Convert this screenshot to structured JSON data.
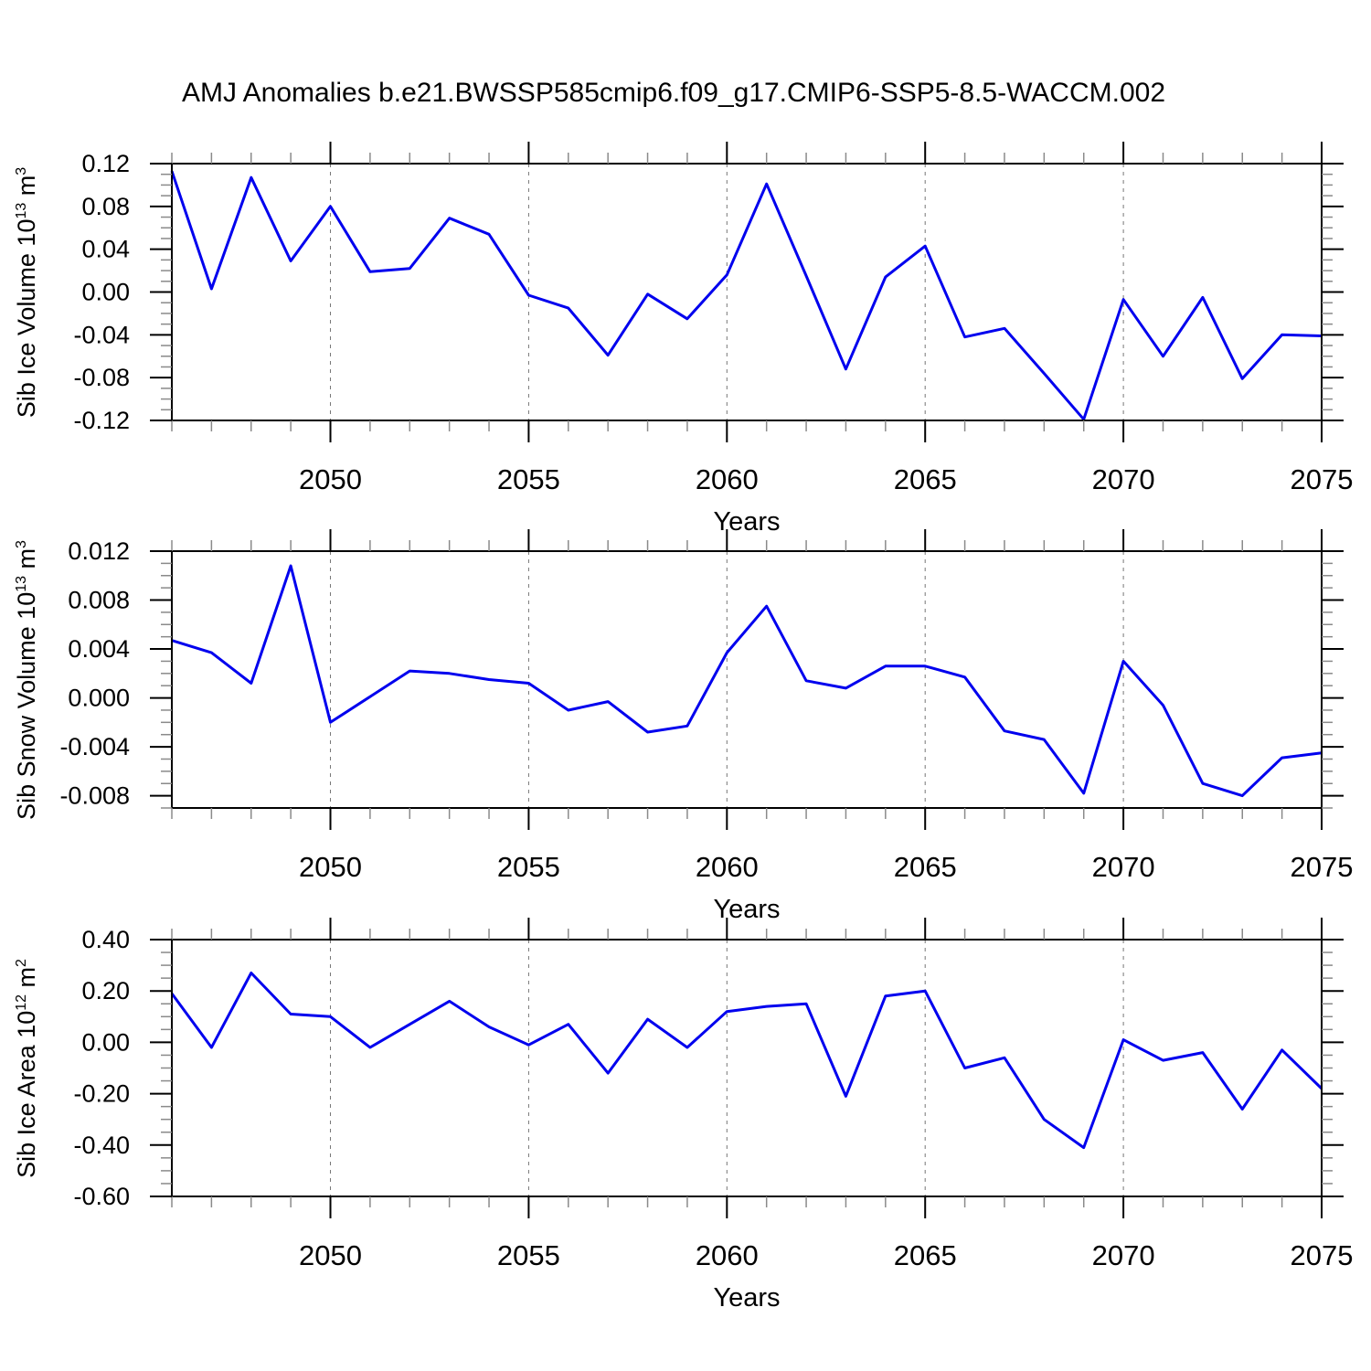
{
  "title": "AMJ Anomalies b.e21.BWSSP585cmip6.f09_g17.CMIP6-SSP5-8.5-WACCM.002",
  "colors": {
    "line": "#0000EE",
    "axis": "#000000",
    "grid": "#777777",
    "minor_tick": "#8a8a8a"
  },
  "x_axis": {
    "label": "Years",
    "years": [
      2046,
      2047,
      2048,
      2049,
      2050,
      2051,
      2052,
      2053,
      2054,
      2055,
      2056,
      2057,
      2058,
      2059,
      2060,
      2061,
      2062,
      2063,
      2064,
      2065,
      2066,
      2067,
      2068,
      2069,
      2070,
      2071,
      2072,
      2073,
      2074,
      2075
    ],
    "major_ticks": [
      2050,
      2055,
      2060,
      2065,
      2070,
      2075
    ],
    "grid_years": [
      2050,
      2055,
      2060,
      2065,
      2070
    ]
  },
  "chart_data": [
    {
      "type": "line",
      "name": "sib-ice-volume",
      "title": "Sib Ice Volume 10^13 m^3",
      "ylabel": {
        "pre": "Sib Ice Volume 10",
        "sup1": "13",
        "mid": " m",
        "sup2": "3"
      },
      "ylim": [
        -0.12,
        0.12
      ],
      "minor_step": 0.01,
      "yticks": [
        {
          "v": 0.12,
          "label": "0.12"
        },
        {
          "v": 0.08,
          "label": "0.08"
        },
        {
          "v": 0.04,
          "label": "0.04"
        },
        {
          "v": 0.0,
          "label": "0.00"
        },
        {
          "v": -0.04,
          "label": "-0.04"
        },
        {
          "v": -0.08,
          "label": "-0.08"
        },
        {
          "v": -0.12,
          "label": "-0.12"
        }
      ],
      "values": [
        0.113,
        0.003,
        0.107,
        0.029,
        0.08,
        0.019,
        0.022,
        0.069,
        0.054,
        -0.003,
        -0.015,
        -0.059,
        -0.002,
        -0.025,
        0.016,
        0.101,
        0.015,
        -0.072,
        0.014,
        0.043,
        -0.042,
        -0.034,
        -0.076,
        -0.119,
        -0.007,
        -0.06,
        -0.005,
        -0.081,
        -0.04,
        -0.041
      ]
    },
    {
      "type": "line",
      "name": "sib-snow-volume",
      "title": "Sib Snow Volume 10^13 m^3",
      "ylabel": {
        "pre": "Sib Snow Volume 10",
        "sup1": "13",
        "mid": " m",
        "sup2": "3"
      },
      "ylim": [
        -0.009,
        0.012
      ],
      "minor_step": 0.001,
      "yticks": [
        {
          "v": 0.012,
          "label": "0.012"
        },
        {
          "v": 0.008,
          "label": "0.008"
        },
        {
          "v": 0.004,
          "label": "0.004"
        },
        {
          "v": 0.0,
          "label": "0.000"
        },
        {
          "v": -0.004,
          "label": "-0.004"
        },
        {
          "v": -0.008,
          "label": "-0.008"
        }
      ],
      "values": [
        0.0047,
        0.0037,
        0.0012,
        0.0108,
        -0.002,
        0.0001,
        0.0022,
        0.002,
        0.0015,
        0.0012,
        -0.001,
        -0.0003,
        -0.0028,
        -0.0023,
        0.0037,
        0.0075,
        0.0014,
        0.0008,
        0.0026,
        0.0026,
        0.0017,
        -0.0027,
        -0.0034,
        -0.0078,
        0.003,
        -0.0006,
        -0.007,
        -0.008,
        -0.0049,
        -0.0045
      ]
    },
    {
      "type": "line",
      "name": "sib-ice-area",
      "title": "Sib Ice Area 10^12 m^2",
      "ylabel": {
        "pre": "Sib Ice Area 10",
        "sup1": "12",
        "mid": " m",
        "sup2": "2"
      },
      "ylim": [
        -0.6,
        0.4
      ],
      "minor_step": 0.05,
      "yticks": [
        {
          "v": 0.4,
          "label": "0.40"
        },
        {
          "v": 0.2,
          "label": "0.20"
        },
        {
          "v": 0.0,
          "label": "0.00"
        },
        {
          "v": -0.2,
          "label": "-0.20"
        },
        {
          "v": -0.4,
          "label": "-0.40"
        },
        {
          "v": -0.6,
          "label": "-0.60"
        }
      ],
      "values": [
        0.19,
        -0.02,
        0.27,
        0.11,
        0.1,
        -0.02,
        0.07,
        0.16,
        0.06,
        -0.01,
        0.07,
        -0.12,
        0.09,
        -0.02,
        0.12,
        0.14,
        0.15,
        -0.21,
        0.18,
        0.2,
        -0.1,
        -0.06,
        -0.3,
        -0.41,
        0.01,
        -0.07,
        -0.04,
        -0.26,
        -0.03,
        -0.18
      ]
    }
  ]
}
